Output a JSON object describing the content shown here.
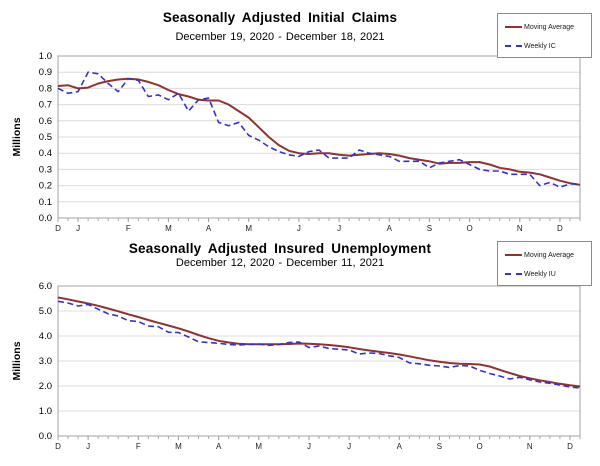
{
  "colors": {
    "moving_average": "#8f3331",
    "weekly": "#3333cc",
    "grid": "#dcdcdc",
    "axis": "#a3a3a3",
    "tick": "#aaaaaa",
    "text": "#000000"
  },
  "chart_data": [
    {
      "type": "line",
      "title": "Seasonally Adjusted Initial Claims",
      "subtitle": "December 19, 2020 - December 18, 2021",
      "ylabel": "Millions",
      "ylim": [
        0,
        1.0
      ],
      "ytick_labels": [
        "1.0",
        "0.9",
        "0.8",
        "0.7",
        "0.6",
        "0.5",
        "0.4",
        "0.3",
        "0.2",
        "0.1",
        "0.0"
      ],
      "grid": true,
      "legend_position": "top-right",
      "weeks": 53,
      "month_ticks": [
        {
          "label": "D",
          "week": 0
        },
        {
          "label": "J",
          "week": 2
        },
        {
          "label": "F",
          "week": 7
        },
        {
          "label": "M",
          "week": 11
        },
        {
          "label": "A",
          "week": 15
        },
        {
          "label": "M",
          "week": 19
        },
        {
          "label": "J",
          "week": 24
        },
        {
          "label": "J",
          "week": 28
        },
        {
          "label": "A",
          "week": 33
        },
        {
          "label": "S",
          "week": 37
        },
        {
          "label": "O",
          "week": 41
        },
        {
          "label": "N",
          "week": 46
        },
        {
          "label": "D",
          "week": 50
        }
      ],
      "legend": [
        {
          "name": "Moving Average",
          "style": "solid",
          "color_key": "moving_average"
        },
        {
          "name": "Weekly IC",
          "style": "dashed",
          "color_key": "weekly"
        }
      ],
      "series": [
        {
          "name": "Moving Average",
          "style": "solid",
          "color_key": "moving_average",
          "values": [
            0.815,
            0.82,
            0.8,
            0.805,
            0.83,
            0.845,
            0.855,
            0.86,
            0.855,
            0.84,
            0.82,
            0.79,
            0.765,
            0.75,
            0.73,
            0.725,
            0.725,
            0.7,
            0.66,
            0.62,
            0.56,
            0.5,
            0.45,
            0.415,
            0.4,
            0.395,
            0.4,
            0.4,
            0.39,
            0.385,
            0.39,
            0.395,
            0.4,
            0.395,
            0.385,
            0.37,
            0.36,
            0.35,
            0.335,
            0.34,
            0.34,
            0.345,
            0.345,
            0.33,
            0.31,
            0.3,
            0.285,
            0.28,
            0.27,
            0.25,
            0.23,
            0.215,
            0.205
          ]
        },
        {
          "name": "Weekly IC",
          "style": "dashed",
          "color_key": "weekly",
          "values": [
            0.8,
            0.77,
            0.78,
            0.9,
            0.89,
            0.83,
            0.78,
            0.86,
            0.85,
            0.75,
            0.76,
            0.73,
            0.77,
            0.66,
            0.73,
            0.74,
            0.59,
            0.57,
            0.59,
            0.51,
            0.48,
            0.44,
            0.41,
            0.39,
            0.38,
            0.41,
            0.42,
            0.37,
            0.37,
            0.37,
            0.42,
            0.4,
            0.39,
            0.38,
            0.35,
            0.35,
            0.35,
            0.31,
            0.34,
            0.35,
            0.36,
            0.33,
            0.3,
            0.29,
            0.29,
            0.27,
            0.27,
            0.27,
            0.2,
            0.22,
            0.19,
            0.21,
            0.21
          ]
        }
      ]
    },
    {
      "type": "line",
      "title": "Seasonally Adjusted Insured Unemployment",
      "subtitle": "December 12, 2020 - December 11, 2021",
      "ylabel": "Millions",
      "ylim": [
        0,
        6.0
      ],
      "ytick_labels": [
        "6.0",
        "5.0",
        "4.0",
        "3.0",
        "2.0",
        "1.0",
        "0.0"
      ],
      "grid": true,
      "legend_position": "top-right",
      "weeks": 53,
      "month_ticks": [
        {
          "label": "D",
          "week": 0
        },
        {
          "label": "J",
          "week": 3
        },
        {
          "label": "F",
          "week": 8
        },
        {
          "label": "M",
          "week": 12
        },
        {
          "label": "A",
          "week": 16
        },
        {
          "label": "M",
          "week": 20
        },
        {
          "label": "J",
          "week": 25
        },
        {
          "label": "J",
          "week": 29
        },
        {
          "label": "A",
          "week": 34
        },
        {
          "label": "S",
          "week": 38
        },
        {
          "label": "O",
          "week": 42
        },
        {
          "label": "N",
          "week": 47
        },
        {
          "label": "D",
          "week": 51
        }
      ],
      "legend": [
        {
          "name": "Moving Average",
          "style": "solid",
          "color_key": "moving_average"
        },
        {
          "name": "Weekly IU",
          "style": "dashed",
          "color_key": "weekly"
        }
      ],
      "series": [
        {
          "name": "Moving Average",
          "style": "solid",
          "color_key": "moving_average",
          "values": [
            5.54,
            5.47,
            5.38,
            5.3,
            5.21,
            5.1,
            4.99,
            4.87,
            4.76,
            4.64,
            4.53,
            4.42,
            4.31,
            4.18,
            4.04,
            3.91,
            3.81,
            3.74,
            3.69,
            3.67,
            3.67,
            3.67,
            3.67,
            3.68,
            3.7,
            3.69,
            3.67,
            3.64,
            3.6,
            3.55,
            3.48,
            3.42,
            3.37,
            3.32,
            3.26,
            3.19,
            3.11,
            3.03,
            2.97,
            2.92,
            2.89,
            2.88,
            2.86,
            2.78,
            2.65,
            2.52,
            2.4,
            2.31,
            2.23,
            2.16,
            2.09,
            2.03,
            1.98
          ]
        },
        {
          "name": "Weekly IU",
          "style": "dashed",
          "color_key": "weekly",
          "values": [
            5.39,
            5.32,
            5.2,
            5.26,
            5.07,
            4.89,
            4.8,
            4.61,
            4.58,
            4.4,
            4.37,
            4.15,
            4.14,
            3.96,
            3.77,
            3.74,
            3.71,
            3.66,
            3.64,
            3.67,
            3.68,
            3.63,
            3.66,
            3.74,
            3.76,
            3.54,
            3.6,
            3.5,
            3.47,
            3.44,
            3.28,
            3.32,
            3.3,
            3.21,
            3.14,
            2.93,
            2.89,
            2.83,
            2.8,
            2.74,
            2.82,
            2.8,
            2.63,
            2.5,
            2.4,
            2.28,
            2.35,
            2.25,
            2.16,
            2.11,
            2.04,
            1.96,
            1.92
          ]
        }
      ]
    }
  ]
}
